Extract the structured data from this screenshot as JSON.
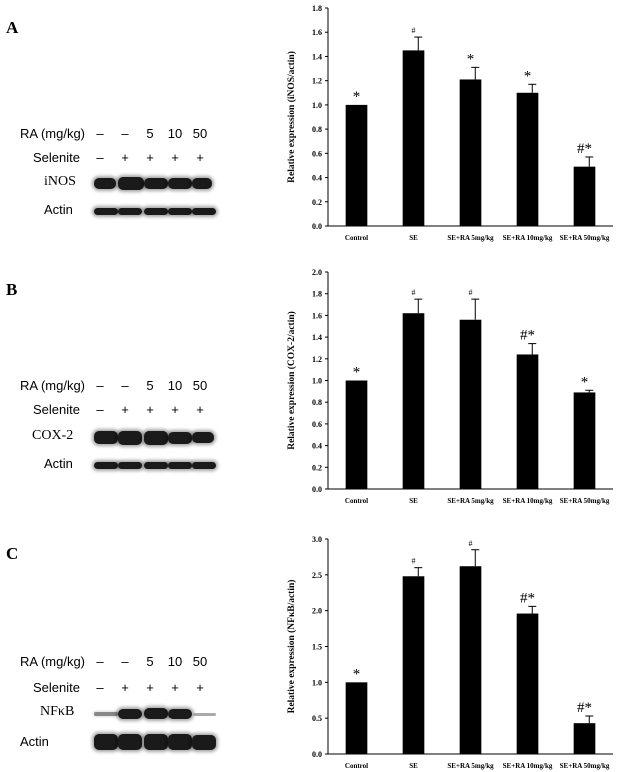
{
  "panels": [
    {
      "label": "A",
      "blot": {
        "ra_label": "RA (mg/kg)",
        "ra_values": [
          "–",
          "–",
          "5",
          "10",
          "50"
        ],
        "selenite_label": "Selenite",
        "selenite_values": [
          "–",
          "+",
          "+",
          "+",
          "+"
        ],
        "protein_label": "iNOS",
        "actin_label": "Actin"
      }
    },
    {
      "label": "B",
      "blot": {
        "ra_label": "RA (mg/kg)",
        "ra_values": [
          "–",
          "–",
          "5",
          "10",
          "50"
        ],
        "selenite_label": "Selenite",
        "selenite_values": [
          "–",
          "+",
          "+",
          "+",
          "+"
        ],
        "protein_label": "COX-2",
        "actin_label": "Actin"
      }
    },
    {
      "label": "C",
      "blot": {
        "ra_label": "RA (mg/kg)",
        "ra_values": [
          "–",
          "–",
          "5",
          "10",
          "50"
        ],
        "selenite_label": "Selenite",
        "selenite_values": [
          "–",
          "+",
          "+",
          "+",
          "+"
        ],
        "protein_label": "NFκB",
        "actin_label": "Actin"
      }
    }
  ],
  "chart_data": [
    {
      "type": "bar",
      "ylabel": "Relative expression (iNOS/actin)",
      "categories": [
        "Control",
        "SE",
        "SE+RA 5mg/kg",
        "SE+RA 10mg/kg",
        "SE+RA 50mg/kg"
      ],
      "values": [
        1.0,
        1.45,
        1.21,
        1.1,
        0.49
      ],
      "errors": [
        0.0,
        0.11,
        0.1,
        0.07,
        0.08
      ],
      "annotations": [
        "*",
        "#",
        "*",
        "*",
        "#*"
      ],
      "ylim": [
        0,
        1.8
      ],
      "yticks": [
        "0.0",
        "0.2",
        "0.4",
        "0.6",
        "0.8",
        "1.0",
        "1.2",
        "1.4",
        "1.6",
        "1.8"
      ]
    },
    {
      "type": "bar",
      "ylabel": "Relative expression (COX-2/actin)",
      "categories": [
        "Control",
        "SE",
        "SE+RA 5mg/kg",
        "SE+RA 10mg/kg",
        "SE+RA 50mg/kg"
      ],
      "values": [
        1.0,
        1.62,
        1.56,
        1.24,
        0.89
      ],
      "errors": [
        0.0,
        0.13,
        0.19,
        0.1,
        0.02
      ],
      "annotations": [
        "*",
        "#",
        "#",
        "#*",
        "*"
      ],
      "ylim": [
        0,
        2.0
      ],
      "yticks": [
        "0.0",
        "0.2",
        "0.4",
        "0.6",
        "0.8",
        "1.0",
        "1.2",
        "1.4",
        "1.6",
        "1.8",
        "2.0"
      ]
    },
    {
      "type": "bar",
      "ylabel": "Relative expression (NFκB/actin)",
      "categories": [
        "Control",
        "SE",
        "SE+RA 5mg/kg",
        "SE+RA 10mg/kg",
        "SE+RA 50mg/kg"
      ],
      "values": [
        1.0,
        2.48,
        2.62,
        1.96,
        0.43
      ],
      "errors": [
        0.0,
        0.12,
        0.23,
        0.1,
        0.1
      ],
      "annotations": [
        "*",
        "#",
        "#",
        "#*",
        "#*"
      ],
      "ylim": [
        0,
        3.0
      ],
      "yticks": [
        "0.0",
        "0.5",
        "1.0",
        "1.5",
        "2.0",
        "2.5",
        "3.0"
      ]
    }
  ]
}
